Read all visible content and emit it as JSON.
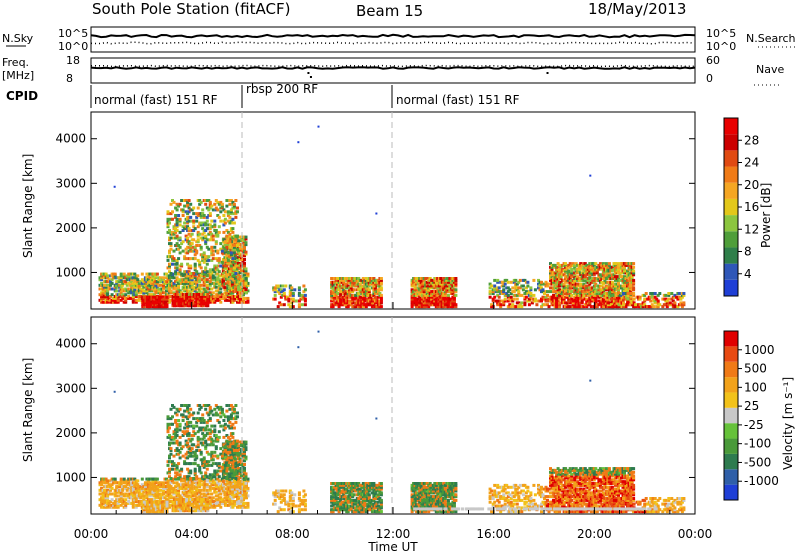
{
  "header": {
    "station": "South Pole Station (fitACF)",
    "beam": "Beam 15",
    "date": "18/May/2013"
  },
  "left_labels": {
    "nsky": "N.Sky",
    "freq": "Freq.",
    "freq_unit": "[MHz]",
    "cpid": "CPID"
  },
  "right_labels": {
    "nsearch": "N.Search",
    "nave": "Nave"
  },
  "colors": {
    "power_scale": [
      "#1f3fd6",
      "#2f57b8",
      "#2f7f4a",
      "#4f9e3a",
      "#8cc63f",
      "#e3c81a",
      "#f5a623",
      "#f07b17",
      "#e04a12",
      "#cc0000",
      "#e80000"
    ],
    "velocity_scale": [
      "#1f3fd6",
      "#2f5fa8",
      "#2e7b4f",
      "#4a9a3a",
      "#66c23a",
      "#c8c8c8",
      "#f2c21a",
      "#f2a21a",
      "#f07a16",
      "#e84a12",
      "#e00000"
    ]
  },
  "chart_data": [
    {
      "type": "line",
      "name": "N.Sky / N.Search noise",
      "ytick_labels": [
        "10^5",
        "10^0"
      ],
      "right_tick_labels": [
        "10^5",
        "10^0"
      ]
    },
    {
      "type": "line",
      "name": "Frequency / Nave",
      "ytick_labels": [
        "18",
        "8"
      ],
      "right_tick_labels": [
        "60",
        "0"
      ]
    },
    {
      "type": "table",
      "name": "CPID",
      "segments": [
        {
          "label": "normal (fast) 151 RF",
          "start": "00:00",
          "end": "06:00"
        },
        {
          "label": "rbsp 200 RF",
          "start": "06:00",
          "end": "12:00"
        },
        {
          "label": "normal (fast) 151 RF",
          "start": "12:00",
          "end": "24:00"
        }
      ]
    },
    {
      "type": "heatmap",
      "name": "Power",
      "ylabel": "Slant Range [km]",
      "ytick_labels": [
        "1000",
        "2000",
        "3000",
        "4000"
      ],
      "ylim": [
        180,
        4600
      ],
      "xlim": [
        0,
        24
      ],
      "colorbar_label": "Power [dB]",
      "colorbar_ticks": [
        "4",
        "8",
        "12",
        "16",
        "20",
        "24",
        "28"
      ]
    },
    {
      "type": "heatmap",
      "name": "Velocity",
      "ylabel": "Slant Range [km]",
      "ytick_labels": [
        "1000",
        "2000",
        "3000",
        "4000"
      ],
      "ylim": [
        180,
        4600
      ],
      "xlim": [
        0,
        24
      ],
      "colorbar_label": "Velocity [m s⁻¹]",
      "colorbar_ticks": [
        "1000",
        "500",
        "100",
        "25",
        "-25",
        "-100",
        "-500",
        "-1000"
      ]
    }
  ],
  "x_axis": {
    "label": "Time UT",
    "tick_labels": [
      "00:00",
      "04:00",
      "08:00",
      "12:00",
      "16:00",
      "20:00",
      "00:00"
    ]
  }
}
